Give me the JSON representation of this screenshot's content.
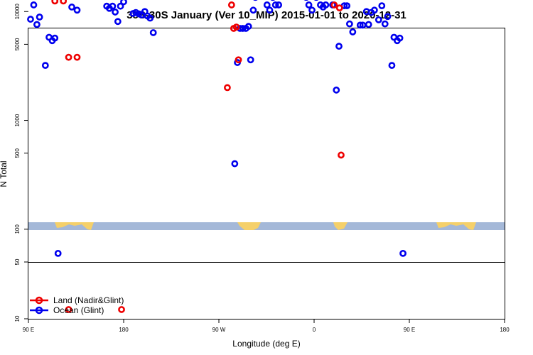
{
  "chart_data": {
    "type": "scatter",
    "title": "35S-30S January (Ver 10_MIP)   2015-01-01 to 2020-12-31",
    "xlabel": "Longitude (deg E)",
    "ylabel": "N Total",
    "y_scale": "log",
    "x_tick_labels": [
      "90 E",
      "180",
      "90 W",
      "0",
      "90 E",
      "180"
    ],
    "y_tick_labels": [
      "10",
      "50",
      "100",
      "500",
      "1000",
      "5000",
      "10000"
    ],
    "grid": false,
    "legend_position": "bottom-left",
    "colors": {
      "land": "#ee0000",
      "ocean": "#0000ee",
      "land_strip_land": "#f5d06a",
      "land_strip_ocean": "#a4b8d8"
    },
    "series": [
      {
        "name": "Land (Nadir&Glint)",
        "color": "#ee0000",
        "points": [
          [
            110.5,
            26000
          ],
          [
            113,
            22000
          ],
          [
            115,
            12500
          ],
          [
            117.5,
            16500
          ],
          [
            120,
            19000
          ],
          [
            122.5,
            22000
          ],
          [
            125.5,
            21000
          ],
          [
            128,
            3800
          ],
          [
            128,
            13
          ],
          [
            -82,
            2000
          ],
          [
            -78,
            11500
          ],
          [
            -76,
            7000
          ],
          [
            -73.5,
            7200
          ],
          [
            -71.5,
            3600
          ],
          [
            19,
            11500
          ],
          [
            21,
            22000
          ],
          [
            24,
            10800
          ],
          [
            25.5,
            480
          ],
          [
            117.5,
            26000
          ],
          [
            120.5,
            22000
          ],
          [
            123,
            12500
          ],
          [
            126,
            16500
          ],
          [
            128.5,
            19000
          ],
          [
            131,
            22000
          ],
          [
            134,
            21000
          ],
          [
            136,
            3800
          ],
          [
            178,
            13
          ]
        ]
      },
      {
        "name": "Ocean (Glint)",
        "color": "#0000ee",
        "points": [
          [
            92,
            8500
          ],
          [
            95,
            11500
          ],
          [
            98,
            7600
          ],
          [
            100.5,
            8900
          ],
          [
            103,
            16000
          ],
          [
            106,
            3200
          ],
          [
            109.5,
            5800
          ],
          [
            112.5,
            5400
          ],
          [
            115,
            5700
          ],
          [
            118,
            60
          ],
          [
            131,
            11000
          ],
          [
            133.5,
            14000
          ],
          [
            136,
            10300
          ],
          [
            139.5,
            19000
          ],
          [
            142,
            17500
          ],
          [
            145,
            17500
          ],
          [
            148,
            16500
          ],
          [
            151,
            15500
          ],
          [
            154,
            14300
          ],
          [
            157,
            17500
          ],
          [
            159.5,
            16500
          ],
          [
            164,
            11200
          ],
          [
            166.5,
            10700
          ],
          [
            169.5,
            11200
          ],
          [
            172,
            9900
          ],
          [
            174.5,
            8100
          ],
          [
            177,
            11200
          ],
          [
            180,
            12300
          ],
          [
            -177,
            16000
          ],
          [
            -174,
            15000
          ],
          [
            -171,
            9600
          ],
          [
            -168.5,
            9800
          ],
          [
            -165.5,
            9500
          ],
          [
            -163,
            9300
          ],
          [
            -160,
            10000
          ],
          [
            -157.5,
            9100
          ],
          [
            -155,
            8700
          ],
          [
            -152,
            6400
          ],
          [
            -75,
            400
          ],
          [
            -72.5,
            3400
          ],
          [
            -70,
            7000
          ],
          [
            -67.5,
            7000
          ],
          [
            -64.5,
            7000
          ],
          [
            -62,
            7300
          ],
          [
            -60,
            3600
          ],
          [
            -57.5,
            10300
          ],
          [
            -55.5,
            13500
          ],
          [
            -52.5,
            20500
          ],
          [
            -50,
            17500
          ],
          [
            -47.5,
            14300
          ],
          [
            -44.5,
            11500
          ],
          [
            -42,
            10300
          ],
          [
            -39,
            13500
          ],
          [
            -36.5,
            11500
          ],
          [
            -33.5,
            11500
          ],
          [
            -7.5,
            13500
          ],
          [
            -5,
            11500
          ],
          [
            -2,
            10300
          ],
          [
            2,
            13500
          ],
          [
            6,
            11500
          ],
          [
            8.5,
            11000
          ],
          [
            11,
            11500
          ],
          [
            14,
            14500
          ],
          [
            17.5,
            11500
          ],
          [
            21,
            1900
          ],
          [
            23.5,
            4800
          ],
          [
            26,
            14000
          ],
          [
            28.5,
            11300
          ],
          [
            31,
            11300
          ],
          [
            33.5,
            7700
          ],
          [
            36.5,
            6500
          ],
          [
            41,
            16000
          ],
          [
            43.5,
            7500
          ],
          [
            46,
            7500
          ],
          [
            49.5,
            10000
          ],
          [
            51.5,
            7600
          ],
          [
            54,
            9800
          ],
          [
            57,
            10300
          ],
          [
            61,
            8400
          ],
          [
            64,
            11300
          ],
          [
            67,
            7700
          ],
          [
            69.5,
            9000
          ],
          [
            71.5,
            16000
          ],
          [
            73.5,
            3200
          ],
          [
            75.5,
            5800
          ],
          [
            78.5,
            5400
          ],
          [
            81,
            5700
          ],
          [
            84,
            60
          ]
        ]
      }
    ]
  }
}
